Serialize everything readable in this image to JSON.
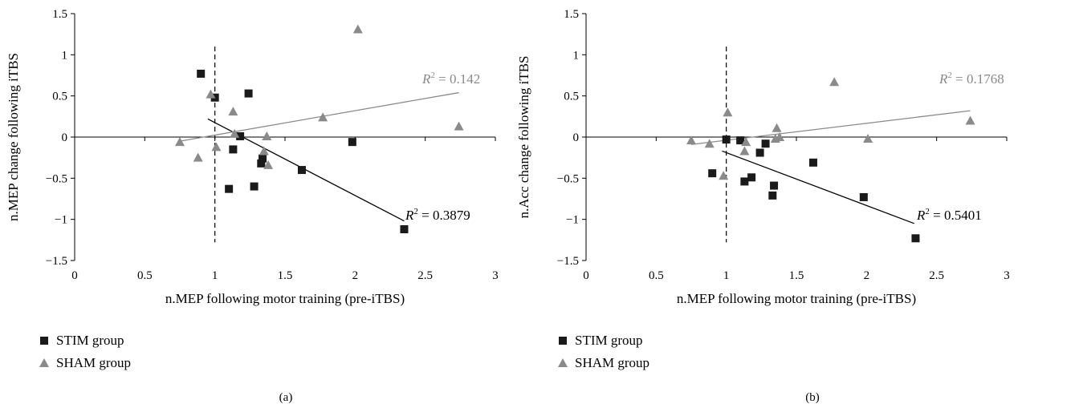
{
  "colors": {
    "stim": "#1a1a1a",
    "sham": "#8a8a8a",
    "axis": "#000000",
    "stim_line": "#000000",
    "sham_line": "#8a8a8a"
  },
  "legend": {
    "stim_label": "STIM group",
    "sham_label": "SHAM group"
  },
  "chart_data": [
    {
      "type": "scatter",
      "panel_label": "(a)",
      "xlabel": "n.MEP following motor training (pre-iTBS)",
      "ylabel": "n.MEP change following iTBS",
      "xlim": [
        0,
        3
      ],
      "ylim": [
        -1.5,
        1.5
      ],
      "xticks": [
        0,
        0.5,
        1,
        1.5,
        2,
        2.5,
        3
      ],
      "yticks": [
        -1.5,
        -1,
        -0.5,
        0,
        0.5,
        1,
        1.5
      ],
      "xtick_labels": [
        "0",
        "0.5",
        "1",
        "1.5",
        "2",
        "2.5",
        "3"
      ],
      "ytick_labels": [
        "−1.5",
        "−1",
        "−0.5",
        "0",
        "0.5",
        "1",
        "1.5"
      ],
      "vline_x": 1,
      "series": [
        {
          "name": "STIM group",
          "marker": "square",
          "points": [
            [
              0.9,
              0.77
            ],
            [
              1.0,
              0.48
            ],
            [
              1.24,
              0.53
            ],
            [
              1.1,
              -0.63
            ],
            [
              1.13,
              -0.15
            ],
            [
              1.18,
              0.01
            ],
            [
              1.28,
              -0.6
            ],
            [
              1.33,
              -0.32
            ],
            [
              1.34,
              -0.26
            ],
            [
              1.62,
              -0.4
            ],
            [
              1.98,
              -0.06
            ],
            [
              2.35,
              -1.12
            ]
          ],
          "trend": {
            "x": [
              0.95,
              2.35
            ],
            "y": [
              0.22,
              -1.02
            ]
          },
          "r2_label": "R",
          "r2_value": " = 0.3879"
        },
        {
          "name": "SHAM group",
          "marker": "triangle",
          "points": [
            [
              0.97,
              0.52
            ],
            [
              1.13,
              0.31
            ],
            [
              1.01,
              -0.12
            ],
            [
              0.88,
              -0.25
            ],
            [
              0.75,
              -0.06
            ],
            [
              1.14,
              0.04
            ],
            [
              1.35,
              -0.17
            ],
            [
              1.37,
              0.01
            ],
            [
              1.38,
              -0.34
            ],
            [
              1.77,
              0.24
            ],
            [
              2.02,
              1.31
            ],
            [
              2.74,
              0.13
            ]
          ],
          "trend": {
            "x": [
              0.75,
              2.74
            ],
            "y": [
              -0.05,
              0.54
            ]
          },
          "r2_label": "R",
          "r2_value": " = 0.142"
        }
      ]
    },
    {
      "type": "scatter",
      "panel_label": "(b)",
      "xlabel": "n.MEP following motor training (pre-iTBS)",
      "ylabel": "n.Acc change following iTBS",
      "xlim": [
        0,
        3
      ],
      "ylim": [
        -1.5,
        1.5
      ],
      "xticks": [
        0,
        0.5,
        1,
        1.5,
        2,
        2.5,
        3
      ],
      "yticks": [
        -1.5,
        -1,
        -0.5,
        0,
        0.5,
        1,
        1.5
      ],
      "xtick_labels": [
        "0",
        "0.5",
        "1",
        "1.5",
        "2",
        "2.5",
        "3"
      ],
      "ytick_labels": [
        "−1.5",
        "−1",
        "−0.5",
        "0",
        "0.5",
        "1",
        "1.5"
      ],
      "vline_x": 1,
      "series": [
        {
          "name": "STIM group",
          "marker": "square",
          "points": [
            [
              1.0,
              -0.03
            ],
            [
              1.1,
              -0.04
            ],
            [
              0.9,
              -0.44
            ],
            [
              1.13,
              -0.54
            ],
            [
              1.18,
              -0.49
            ],
            [
              1.24,
              -0.19
            ],
            [
              1.28,
              -0.08
            ],
            [
              1.33,
              -0.71
            ],
            [
              1.34,
              -0.59
            ],
            [
              1.62,
              -0.31
            ],
            [
              1.98,
              -0.73
            ],
            [
              2.35,
              -1.23
            ]
          ],
          "trend": {
            "x": [
              0.97,
              2.34
            ],
            "y": [
              -0.17,
              -1.05
            ]
          },
          "r2_label": "R",
          "r2_value": " = 0.5401"
        },
        {
          "name": "SHAM group",
          "marker": "triangle",
          "points": [
            [
              1.01,
              0.3
            ],
            [
              0.75,
              -0.04
            ],
            [
              0.88,
              -0.08
            ],
            [
              0.98,
              -0.47
            ],
            [
              1.13,
              -0.17
            ],
            [
              1.14,
              -0.06
            ],
            [
              1.35,
              -0.02
            ],
            [
              1.36,
              0.11
            ],
            [
              1.38,
              0.0
            ],
            [
              1.77,
              0.67
            ],
            [
              2.01,
              -0.02
            ],
            [
              2.74,
              0.2
            ]
          ],
          "trend": {
            "x": [
              0.75,
              2.74
            ],
            "y": [
              -0.09,
              0.32
            ]
          },
          "r2_label": "R",
          "r2_value": " = 0.1768"
        }
      ]
    }
  ]
}
